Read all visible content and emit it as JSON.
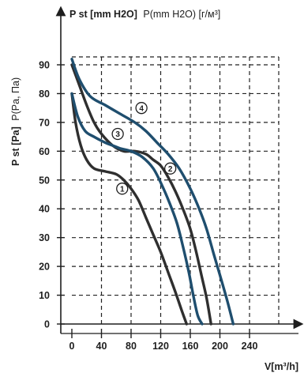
{
  "chart_data": {
    "type": "line",
    "y_axis_title": {
      "bold_part": "P st [mm H2O]",
      "normal_part": "P(mm H2O) [г/м³]"
    },
    "y_axis_side_title": {
      "bold_part": "P st [Pa]",
      "normal_part": "P(Pa, Па)"
    },
    "x_axis_title": "V[m³/h]",
    "xlim": [
      0,
      240
    ],
    "ylim": [
      0,
      90
    ],
    "x_ticks": [
      0,
      40,
      80,
      120,
      160,
      200,
      240
    ],
    "y_ticks": [
      0,
      10,
      20,
      30,
      40,
      50,
      60,
      70,
      80,
      90
    ],
    "grid": true,
    "series": [
      {
        "marker": "1",
        "color": "#2f2f2f",
        "points": [
          [
            0,
            80
          ],
          [
            5,
            70
          ],
          [
            12,
            62
          ],
          [
            20,
            57
          ],
          [
            30,
            54
          ],
          [
            45,
            53
          ],
          [
            60,
            52
          ],
          [
            70,
            50
          ],
          [
            80,
            47
          ],
          [
            90,
            43
          ],
          [
            100,
            37
          ],
          [
            110,
            31
          ],
          [
            120,
            25
          ],
          [
            130,
            18
          ],
          [
            140,
            11
          ],
          [
            148,
            5
          ],
          [
            155,
            0
          ]
        ],
        "label_at": [
          68,
          47
        ]
      },
      {
        "marker": "2",
        "color": "#2f2f2f",
        "points": [
          [
            0,
            90
          ],
          [
            10,
            83
          ],
          [
            20,
            76
          ],
          [
            30,
            70
          ],
          [
            40,
            66
          ],
          [
            55,
            62
          ],
          [
            70,
            60
          ],
          [
            85,
            60
          ],
          [
            100,
            59
          ],
          [
            110,
            57
          ],
          [
            120,
            55
          ],
          [
            130,
            51
          ],
          [
            140,
            46
          ],
          [
            150,
            40
          ],
          [
            160,
            33
          ],
          [
            168,
            25
          ],
          [
            175,
            17
          ],
          [
            182,
            9
          ],
          [
            188,
            0
          ]
        ],
        "label_at": [
          133,
          54
        ]
      },
      {
        "marker": "3",
        "color": "#1f4e6e",
        "points": [
          [
            0,
            80
          ],
          [
            8,
            72
          ],
          [
            18,
            67
          ],
          [
            30,
            65
          ],
          [
            45,
            63
          ],
          [
            55,
            62
          ],
          [
            65,
            61
          ],
          [
            80,
            60
          ],
          [
            95,
            58
          ],
          [
            110,
            54
          ],
          [
            122,
            48
          ],
          [
            132,
            42
          ],
          [
            142,
            35
          ],
          [
            150,
            27
          ],
          [
            158,
            18
          ],
          [
            164,
            10
          ],
          [
            170,
            3
          ],
          [
            176,
            0
          ]
        ],
        "label_at": [
          62,
          66
        ]
      },
      {
        "marker": "4",
        "color": "#1f4e6e",
        "points": [
          [
            0,
            92
          ],
          [
            10,
            85
          ],
          [
            25,
            79
          ],
          [
            45,
            76
          ],
          [
            65,
            73
          ],
          [
            85,
            70
          ],
          [
            100,
            67
          ],
          [
            115,
            63
          ],
          [
            130,
            59
          ],
          [
            145,
            54
          ],
          [
            160,
            47
          ],
          [
            172,
            40
          ],
          [
            182,
            33
          ],
          [
            192,
            24
          ],
          [
            200,
            17
          ],
          [
            210,
            8
          ],
          [
            218,
            0
          ]
        ],
        "label_at": [
          94,
          75
        ]
      }
    ]
  }
}
